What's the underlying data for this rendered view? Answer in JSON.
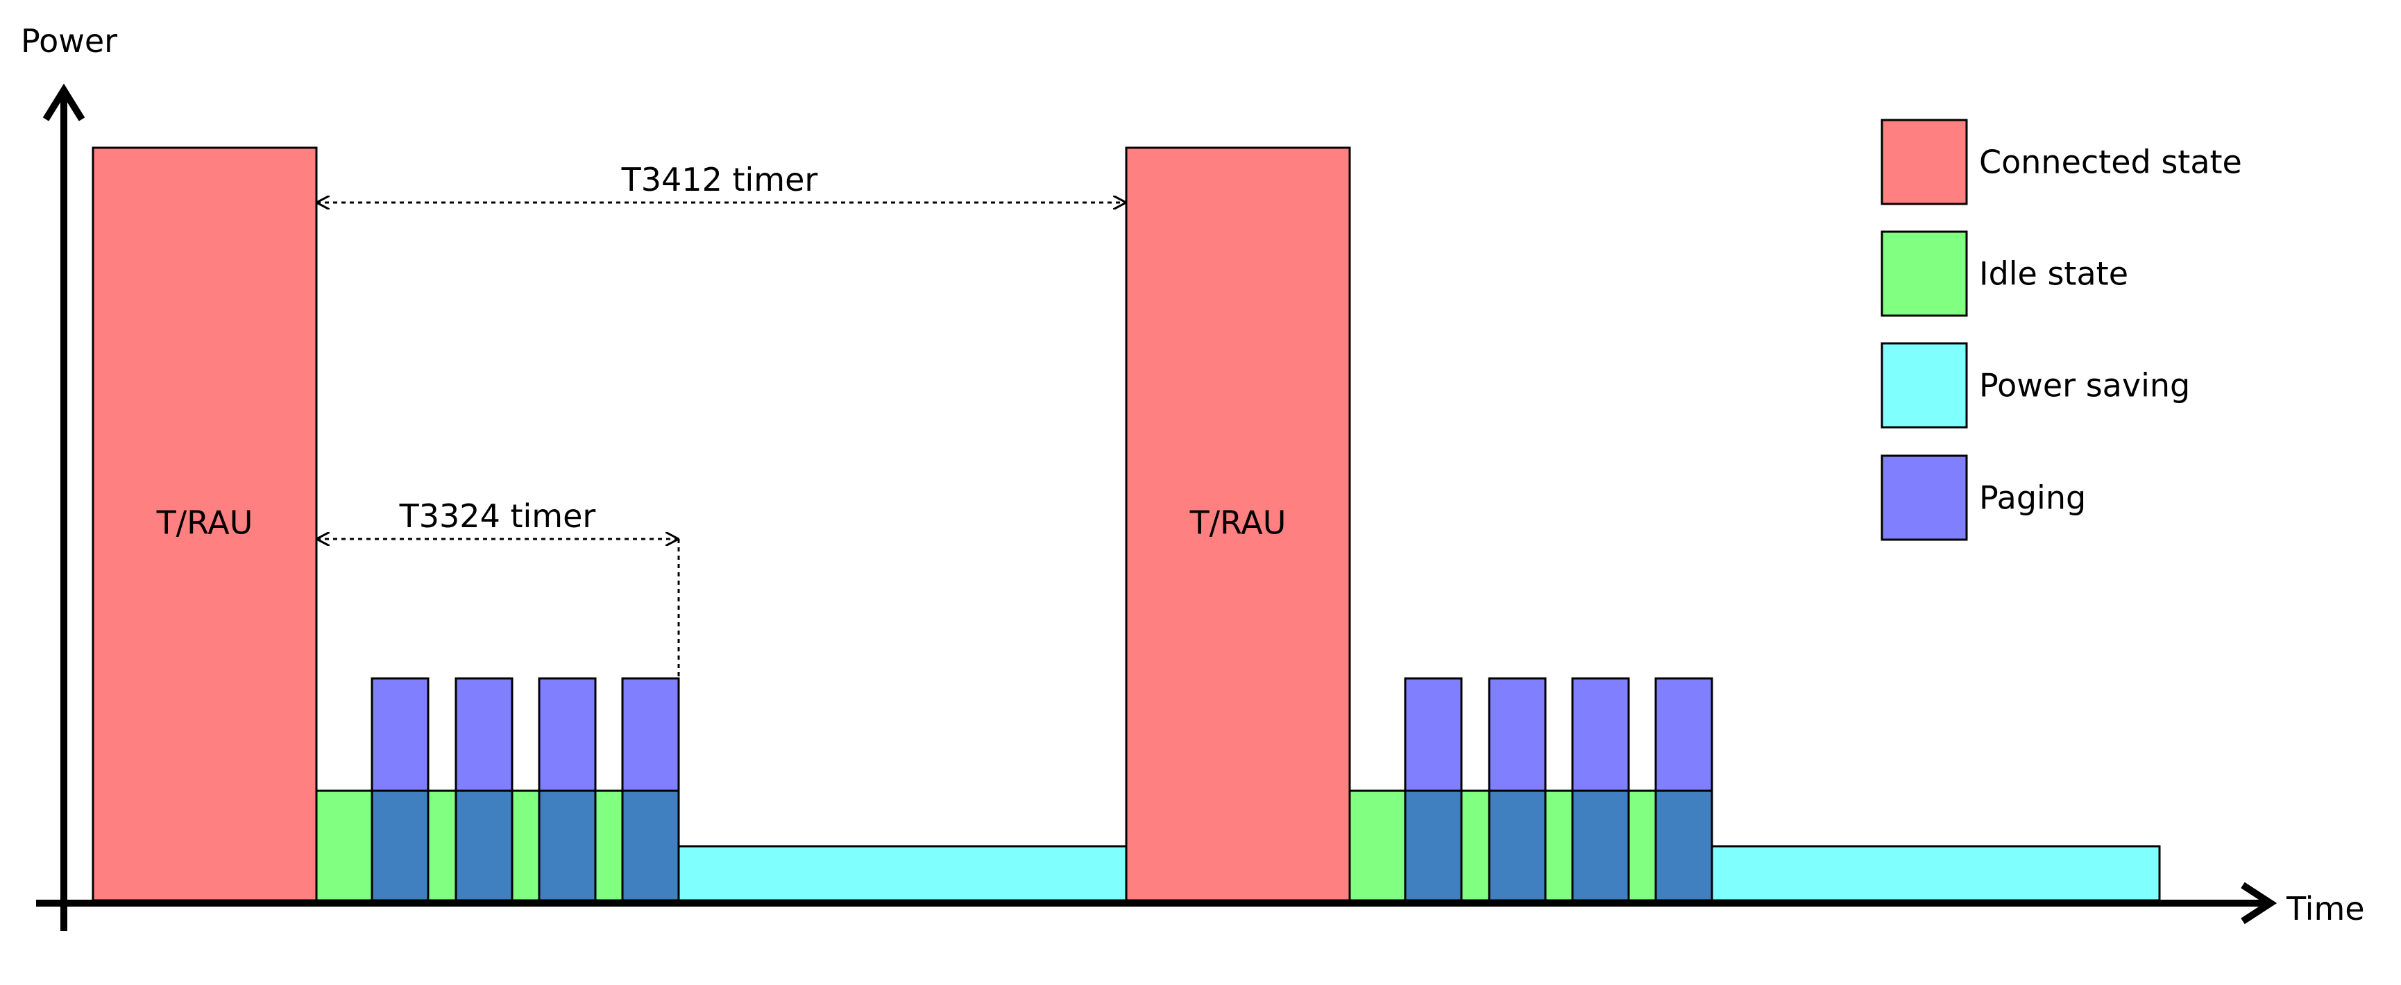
{
  "axes": {
    "y_label": "Power",
    "x_label": "Time"
  },
  "blocks": {
    "tau_label_1": "T/RAU",
    "tau_label_2": "T/RAU"
  },
  "timers": {
    "t3412": "T3412 timer",
    "t3324": "T3324 timer"
  },
  "legend": [
    {
      "label": "Connected state",
      "color": "#ff8080"
    },
    {
      "label": "Idle state",
      "color": "#80ff80"
    },
    {
      "label": "Power saving",
      "color": "#80ffff"
    },
    {
      "label": "Paging",
      "color": "#8080ff"
    }
  ],
  "colors": {
    "overlap": "#4080c0",
    "stroke": "#000000"
  }
}
